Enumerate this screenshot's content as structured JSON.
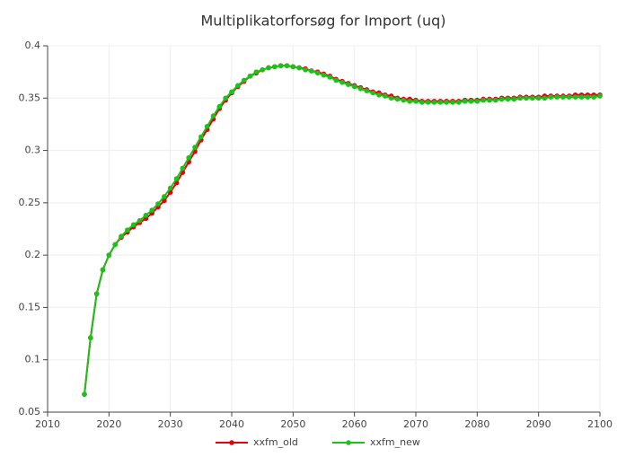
{
  "chart_data": {
    "type": "line",
    "title": "Multiplikatorforsøg for Import (uq)",
    "x": [
      2016,
      2017,
      2018,
      2019,
      2020,
      2021,
      2022,
      2023,
      2024,
      2025,
      2026,
      2027,
      2028,
      2029,
      2030,
      2031,
      2032,
      2033,
      2034,
      2035,
      2036,
      2037,
      2038,
      2039,
      2040,
      2041,
      2042,
      2043,
      2044,
      2045,
      2046,
      2047,
      2048,
      2049,
      2050,
      2051,
      2052,
      2053,
      2054,
      2055,
      2056,
      2057,
      2058,
      2059,
      2060,
      2061,
      2062,
      2063,
      2064,
      2065,
      2066,
      2067,
      2068,
      2069,
      2070,
      2071,
      2072,
      2073,
      2074,
      2075,
      2076,
      2077,
      2078,
      2079,
      2080,
      2081,
      2082,
      2083,
      2084,
      2085,
      2086,
      2087,
      2088,
      2089,
      2090,
      2091,
      2092,
      2093,
      2094,
      2095,
      2096,
      2097,
      2098,
      2099,
      2100
    ],
    "series": [
      {
        "name": "xxfm_old",
        "color": "#e8000b",
        "values": [
          0.067,
          0.121,
          0.163,
          0.186,
          0.2,
          0.21,
          0.217,
          0.222,
          0.227,
          0.231,
          0.235,
          0.24,
          0.246,
          0.252,
          0.26,
          0.269,
          0.279,
          0.289,
          0.299,
          0.31,
          0.32,
          0.33,
          0.34,
          0.348,
          0.355,
          0.361,
          0.366,
          0.371,
          0.374,
          0.377,
          0.379,
          0.38,
          0.381,
          0.381,
          0.38,
          0.379,
          0.378,
          0.376,
          0.375,
          0.373,
          0.371,
          0.368,
          0.366,
          0.364,
          0.362,
          0.36,
          0.358,
          0.356,
          0.355,
          0.353,
          0.352,
          0.35,
          0.349,
          0.349,
          0.348,
          0.347,
          0.347,
          0.347,
          0.347,
          0.347,
          0.347,
          0.347,
          0.348,
          0.348,
          0.348,
          0.349,
          0.349,
          0.349,
          0.35,
          0.35,
          0.35,
          0.351,
          0.351,
          0.351,
          0.351,
          0.352,
          0.352,
          0.352,
          0.352,
          0.352,
          0.353,
          0.353,
          0.353,
          0.353,
          0.353
        ]
      },
      {
        "name": "xxfm_new",
        "color": "#1ac21a",
        "values": [
          0.067,
          0.121,
          0.163,
          0.186,
          0.2,
          0.21,
          0.218,
          0.224,
          0.229,
          0.233,
          0.238,
          0.243,
          0.249,
          0.256,
          0.264,
          0.273,
          0.283,
          0.293,
          0.303,
          0.313,
          0.323,
          0.333,
          0.342,
          0.35,
          0.356,
          0.362,
          0.367,
          0.371,
          0.375,
          0.377,
          0.379,
          0.38,
          0.381,
          0.381,
          0.38,
          0.379,
          0.377,
          0.376,
          0.374,
          0.372,
          0.37,
          0.367,
          0.365,
          0.363,
          0.361,
          0.359,
          0.357,
          0.355,
          0.353,
          0.352,
          0.35,
          0.349,
          0.348,
          0.347,
          0.347,
          0.346,
          0.346,
          0.346,
          0.346,
          0.346,
          0.346,
          0.346,
          0.347,
          0.347,
          0.347,
          0.348,
          0.348,
          0.348,
          0.349,
          0.349,
          0.349,
          0.35,
          0.35,
          0.35,
          0.35,
          0.35,
          0.351,
          0.351,
          0.351,
          0.351,
          0.351,
          0.351,
          0.351,
          0.351,
          0.352
        ]
      }
    ],
    "xlim": [
      2010,
      2100
    ],
    "xticks": [
      2010,
      2020,
      2030,
      2040,
      2050,
      2060,
      2070,
      2080,
      2090,
      2100
    ],
    "ylim": [
      0.05,
      0.4
    ],
    "yticks": [
      0.05,
      0.1,
      0.15,
      0.2,
      0.25,
      0.3,
      0.35,
      0.4
    ],
    "grid": true,
    "legend": "bottom"
  }
}
